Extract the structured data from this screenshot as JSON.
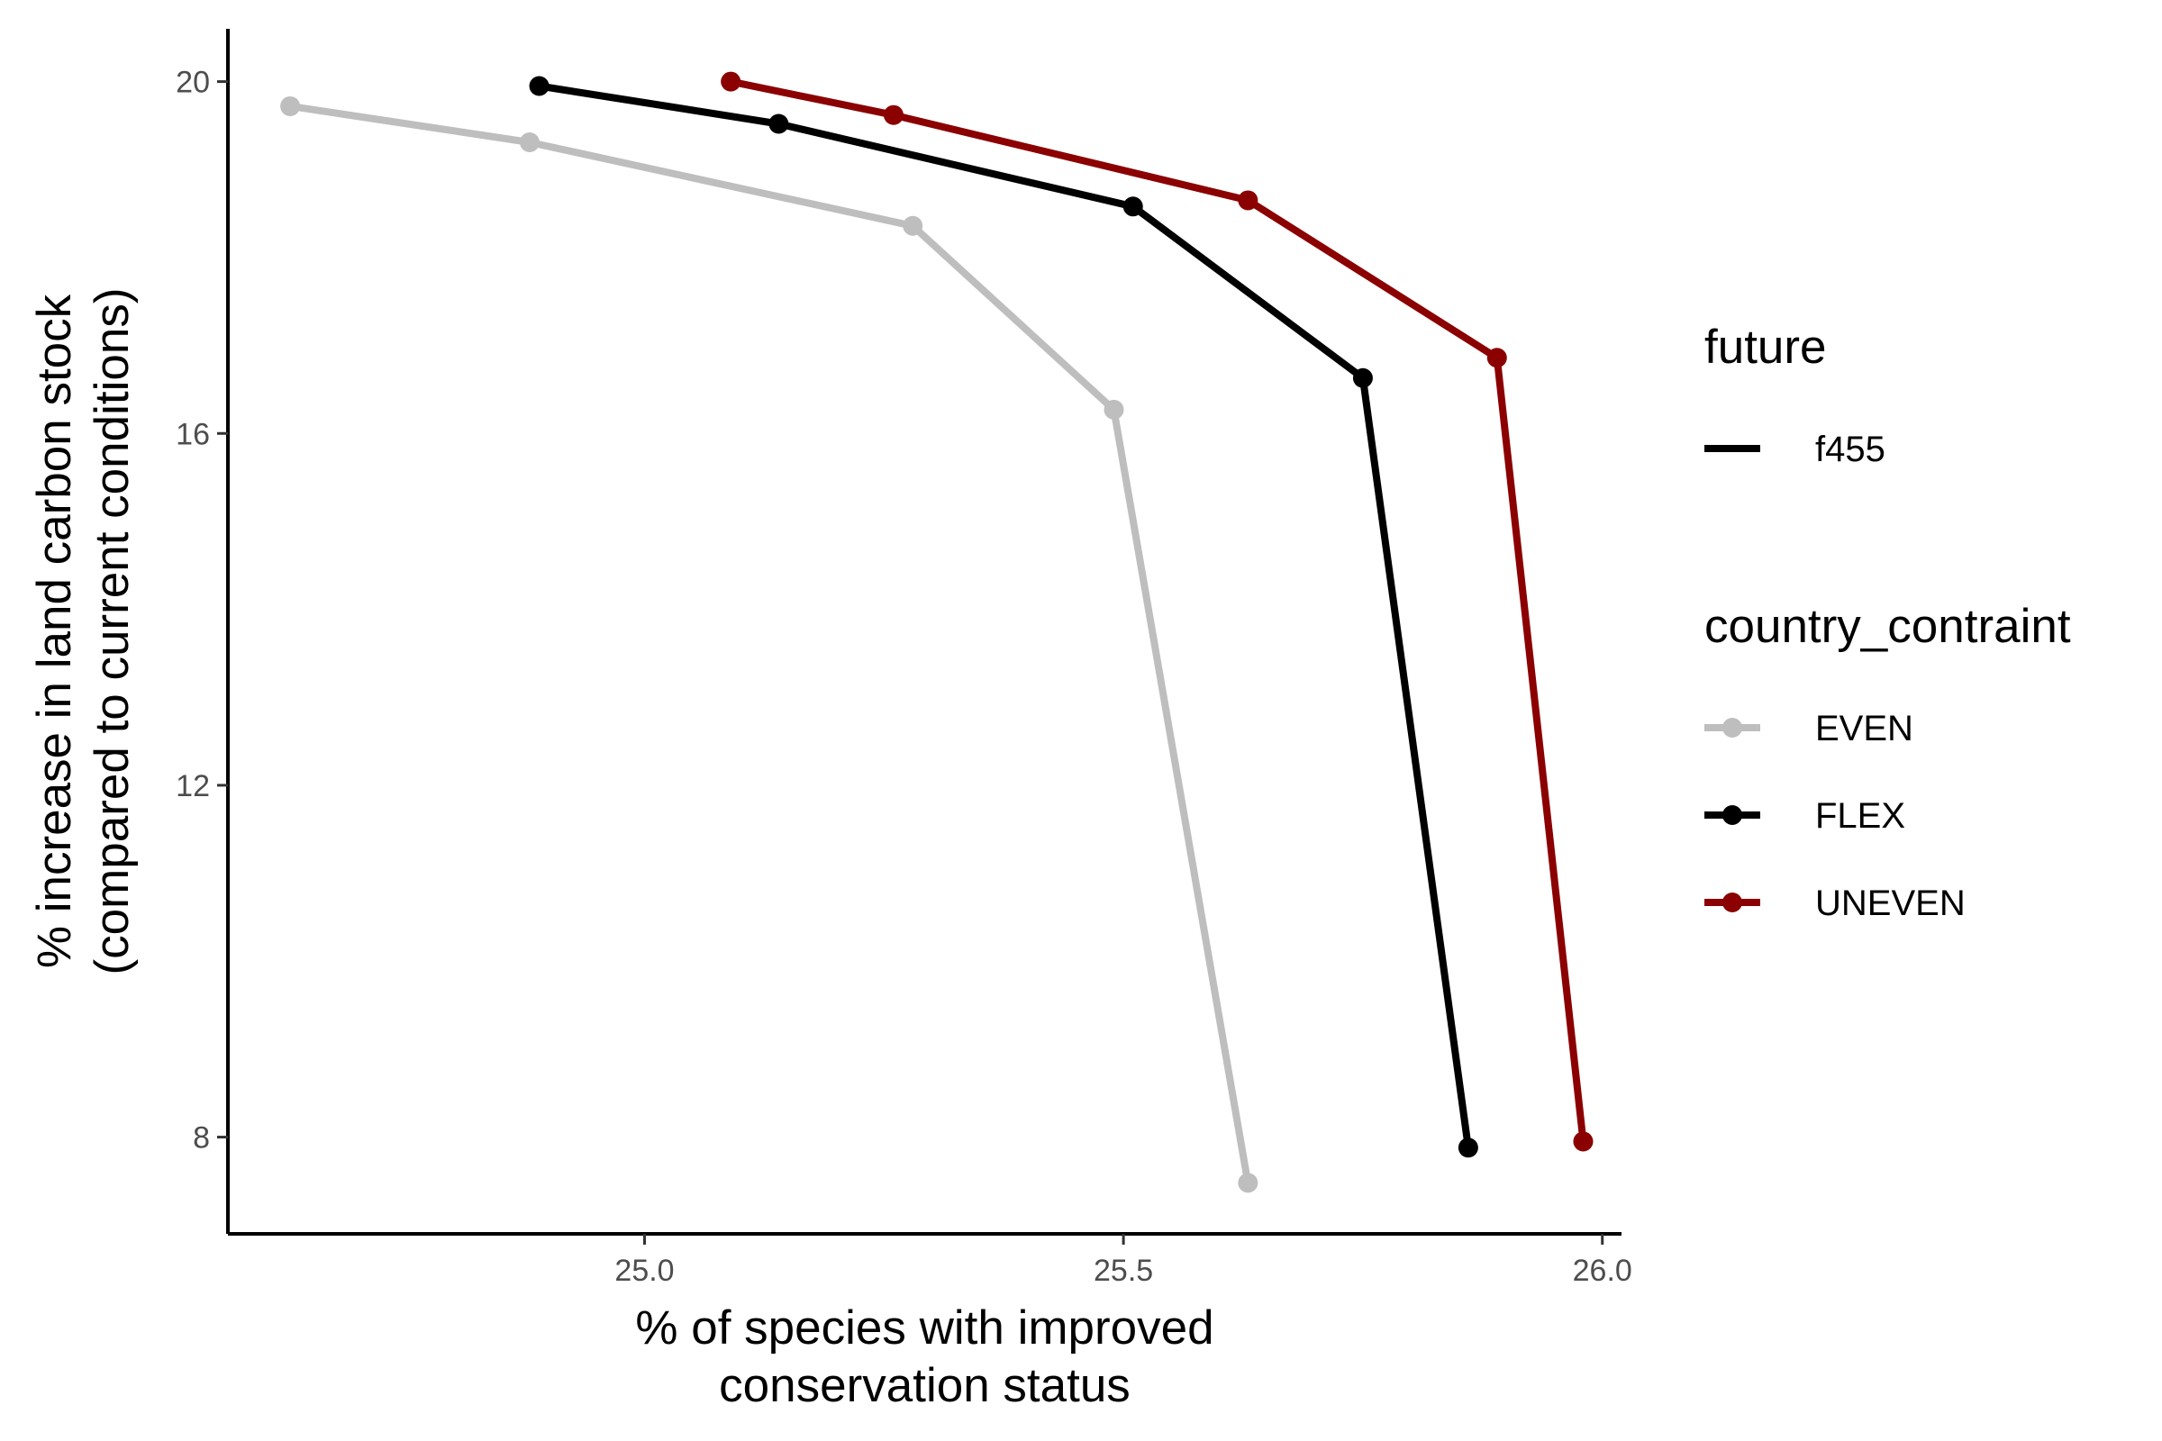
{
  "chart_data": {
    "type": "line",
    "title": "",
    "xlabel": [
      "% of species with improved",
      "conservation status"
    ],
    "ylabel": [
      "% increase in land carbon stock",
      "(compared to current conditions)"
    ],
    "xlim": [
      24.565,
      26.02
    ],
    "ylim": [
      6.9,
      20.6
    ],
    "xticks": [
      25.0,
      25.5,
      26.0
    ],
    "xtick_labels": [
      "25.0",
      "25.5",
      "26.0"
    ],
    "yticks": [
      8,
      12,
      16,
      20
    ],
    "ytick_labels": [
      "8",
      "12",
      "16",
      "20"
    ],
    "grid": false,
    "legend_position": "right",
    "legends": [
      {
        "title": "future",
        "items": [
          {
            "label": "f455",
            "color": "#000000",
            "type": "line"
          }
        ]
      },
      {
        "title": "country_contraint",
        "items": [
          {
            "label": "EVEN",
            "color": "#bebebe",
            "type": "line-point"
          },
          {
            "label": "FLEX",
            "color": "#000000",
            "type": "line-point"
          },
          {
            "label": "UNEVEN",
            "color": "#8b0000",
            "type": "line-point"
          }
        ]
      }
    ],
    "series": [
      {
        "name": "EVEN",
        "color": "#bebebe",
        "points": [
          [
            24.63,
            19.72
          ],
          [
            24.88,
            19.31
          ],
          [
            25.28,
            18.36
          ],
          [
            25.49,
            16.27
          ],
          [
            25.63,
            7.48
          ]
        ]
      },
      {
        "name": "FLEX",
        "color": "#000000",
        "points": [
          [
            24.89,
            19.95
          ],
          [
            25.14,
            19.52
          ],
          [
            25.51,
            18.58
          ],
          [
            25.75,
            16.63
          ],
          [
            25.86,
            7.88
          ]
        ]
      },
      {
        "name": "UNEVEN",
        "color": "#8b0000",
        "points": [
          [
            25.09,
            20.0
          ],
          [
            25.26,
            19.62
          ],
          [
            25.63,
            18.65
          ],
          [
            25.89,
            16.86
          ],
          [
            25.98,
            7.95
          ]
        ]
      }
    ]
  }
}
